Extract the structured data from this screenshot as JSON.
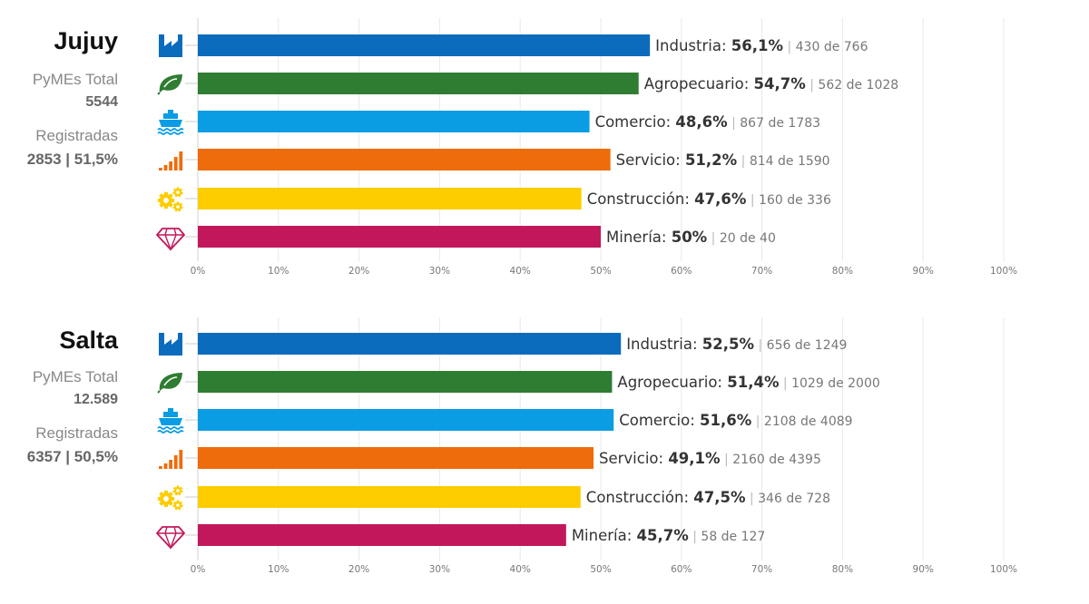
{
  "chart_data": [
    {
      "type": "bar",
      "orientation": "horizontal",
      "title": "Jujuy",
      "summary": {
        "total_label": "PyMEs Total",
        "total_value": "5544",
        "registered_label": "Registradas",
        "registered_value": "2853 | 51,5%"
      },
      "categories": [
        "Industria",
        "Agropecuario",
        "Comercio",
        "Servicio",
        "Construcción",
        "Minería"
      ],
      "values": [
        56.1,
        54.7,
        48.6,
        51.2,
        47.6,
        50
      ],
      "value_labels": [
        "56,1%",
        "54,7%",
        "48,6%",
        "51,2%",
        "47,6%",
        "50%"
      ],
      "detail_labels": [
        "430 de 766",
        "562 de 1028",
        "867 de 1783",
        "814 de 1590",
        "160 de 336",
        "20 de 40"
      ],
      "icons": [
        "factory-icon",
        "leaf-icon",
        "ship-icon",
        "signal-bars-icon",
        "gears-icon",
        "diamond-icon"
      ],
      "colors": [
        "#0b6bbd",
        "#2f7d32",
        "#0a9de3",
        "#ee6c0c",
        "#fdcd00",
        "#c2185b"
      ],
      "xlim": [
        0,
        100
      ],
      "xticks": [
        "0%",
        "10%",
        "20%",
        "30%",
        "40%",
        "50%",
        "60%",
        "70%",
        "80%",
        "90%",
        "100%"
      ],
      "grid": true
    },
    {
      "type": "bar",
      "orientation": "horizontal",
      "title": "Salta",
      "summary": {
        "total_label": "PyMEs Total",
        "total_value": "12.589",
        "registered_label": "Registradas",
        "registered_value": "6357 | 50,5%"
      },
      "categories": [
        "Industria",
        "Agropecuario",
        "Comercio",
        "Servicio",
        "Construcción",
        "Minería"
      ],
      "values": [
        52.5,
        51.4,
        51.6,
        49.1,
        47.5,
        45.7
      ],
      "value_labels": [
        "52,5%",
        "51,4%",
        "51,6%",
        "49,1%",
        "47,5%",
        "45,7%"
      ],
      "detail_labels": [
        "656 de 1249",
        "1029 de 2000",
        "2108 de 4089",
        "2160 de 4395",
        "346 de 728",
        "58 de 127"
      ],
      "icons": [
        "factory-icon",
        "leaf-icon",
        "ship-icon",
        "signal-bars-icon",
        "gears-icon",
        "diamond-icon"
      ],
      "colors": [
        "#0b6bbd",
        "#2f7d32",
        "#0a9de3",
        "#ee6c0c",
        "#fdcd00",
        "#c2185b"
      ],
      "xlim": [
        0,
        100
      ],
      "xticks": [
        "0%",
        "10%",
        "20%",
        "30%",
        "40%",
        "50%",
        "60%",
        "70%",
        "80%",
        "90%",
        "100%"
      ],
      "grid": true
    }
  ]
}
